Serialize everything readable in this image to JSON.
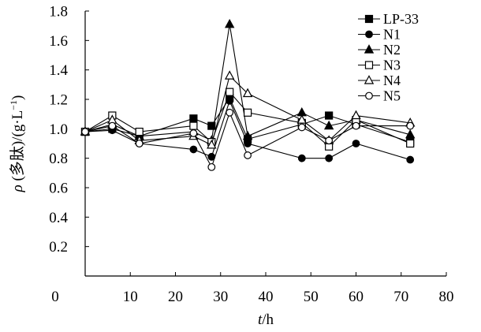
{
  "chart_data": {
    "type": "line",
    "title": "",
    "xlabel_var": "t",
    "xlabel_unit": "/h",
    "ylabel_var": "ρ",
    "ylabel_rest": " (多肽)/(g·L",
    "ylabel_exp": "−1",
    "ylabel_close": ")",
    "xlim": [
      0,
      80
    ],
    "ylim": [
      0,
      1.8
    ],
    "x_ticks": [
      0,
      10,
      20,
      30,
      40,
      50,
      60,
      70,
      80
    ],
    "y_ticks": [
      0.2,
      0.4,
      0.6,
      0.8,
      1.0,
      1.2,
      1.4,
      1.6,
      1.8
    ],
    "grid": false,
    "legend_position": "top-right",
    "series": [
      {
        "name": "LP-33",
        "marker": "square-filled",
        "points": [
          [
            0,
            0.98
          ],
          [
            6,
            1.0
          ],
          [
            12,
            0.95
          ],
          [
            24,
            1.07
          ],
          [
            28,
            1.02
          ],
          [
            32,
            1.21
          ],
          [
            36,
            0.93
          ],
          [
            48,
            1.03
          ],
          [
            54,
            1.09
          ],
          [
            60,
            1.03
          ],
          [
            72,
            0.91
          ]
        ]
      },
      {
        "name": "N1",
        "marker": "circle-filled",
        "points": [
          [
            0,
            0.98
          ],
          [
            6,
            0.99
          ],
          [
            12,
            0.9
          ],
          [
            24,
            0.86
          ],
          [
            28,
            0.81
          ],
          [
            32,
            1.19
          ],
          [
            36,
            0.9
          ],
          [
            48,
            0.8
          ],
          [
            54,
            0.8
          ],
          [
            60,
            0.9
          ],
          [
            72,
            0.79
          ]
        ]
      },
      {
        "name": "N2",
        "marker": "triangle-filled",
        "points": [
          [
            0,
            0.98
          ],
          [
            6,
            1.03
          ],
          [
            12,
            0.95
          ],
          [
            24,
            0.98
          ],
          [
            28,
            0.92
          ],
          [
            32,
            1.71
          ],
          [
            36,
            0.95
          ],
          [
            48,
            1.11
          ],
          [
            54,
            1.02
          ],
          [
            60,
            1.06
          ],
          [
            72,
            0.96
          ]
        ]
      },
      {
        "name": "N3",
        "marker": "square-open",
        "points": [
          [
            0,
            0.98
          ],
          [
            6,
            1.09
          ],
          [
            12,
            0.98
          ],
          [
            24,
            1.02
          ],
          [
            28,
            0.91
          ],
          [
            32,
            1.25
          ],
          [
            36,
            1.11
          ],
          [
            48,
            1.04
          ],
          [
            54,
            0.88
          ],
          [
            60,
            1.06
          ],
          [
            72,
            0.9
          ]
        ]
      },
      {
        "name": "N4",
        "marker": "triangle-open",
        "points": [
          [
            0,
            0.98
          ],
          [
            6,
            1.06
          ],
          [
            12,
            0.92
          ],
          [
            24,
            0.95
          ],
          [
            28,
            0.89
          ],
          [
            32,
            1.36
          ],
          [
            36,
            1.24
          ],
          [
            48,
            1.06
          ],
          [
            54,
            0.92
          ],
          [
            60,
            1.09
          ],
          [
            72,
            1.04
          ]
        ]
      },
      {
        "name": "N5",
        "marker": "circle-open",
        "points": [
          [
            0,
            0.98
          ],
          [
            6,
            1.02
          ],
          [
            12,
            0.9
          ],
          [
            24,
            0.97
          ],
          [
            28,
            0.74
          ],
          [
            32,
            1.11
          ],
          [
            36,
            0.82
          ],
          [
            48,
            1.01
          ],
          [
            54,
            0.92
          ],
          [
            60,
            1.02
          ],
          [
            72,
            1.02
          ]
        ]
      }
    ]
  }
}
